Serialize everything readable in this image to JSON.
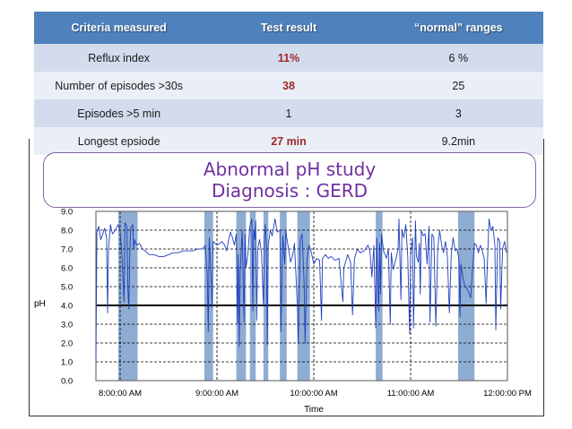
{
  "table": {
    "headers": [
      "Criteria measured",
      "Test result",
      "“normal” ranges"
    ],
    "rows": [
      {
        "criterion": "Reflux index",
        "result": "11%",
        "normal": "6 %"
      },
      {
        "criterion": "Number of episodes >30s",
        "result": "38",
        "normal": "25"
      },
      {
        "criterion": "Episodes >5 min",
        "result": "1",
        "normal": "3"
      },
      {
        "criterion": "Longest epsiode",
        "result": "27 min",
        "normal": "9.2min"
      }
    ]
  },
  "diagnosis": {
    "line1": "Abnormal pH study",
    "line2": "Diagnosis : GERD"
  },
  "colors": {
    "header_bg": "#4f81bd",
    "abnormal": "#a0282a",
    "diagnosis_text": "#7030a0",
    "trace": "#1f3fbf",
    "reflux_band": "#8fadd2"
  },
  "chart_data": {
    "type": "line",
    "title": "",
    "xlabel": "Time",
    "ylabel": "pH",
    "x_ticks": [
      "8:00:00 AM",
      "9:00:00 AM",
      "10:00:00 AM",
      "11:00:00 AM",
      "12:00:00 PM"
    ],
    "y_ticks": [
      "0.0",
      "1.0",
      "2.0",
      "3.0",
      "4.0",
      "5.0",
      "6.0",
      "7.0",
      "8.0",
      "9.0"
    ],
    "xlim_hours": [
      7.75,
      12.0
    ],
    "ylim": [
      0,
      9
    ],
    "threshold_ph": 4.0,
    "reflux_periods_hours": [
      [
        7.98,
        8.18
      ],
      [
        8.87,
        8.96
      ],
      [
        9.2,
        9.3
      ],
      [
        9.34,
        9.4
      ],
      [
        9.48,
        9.53
      ],
      [
        9.65,
        9.72
      ],
      [
        9.83,
        9.96
      ],
      [
        10.64,
        10.71
      ],
      [
        11.49,
        11.66
      ]
    ],
    "ph_trace": [
      [
        7.75,
        1.0
      ],
      [
        7.76,
        7.9
      ],
      [
        7.78,
        8.2
      ],
      [
        7.8,
        7.5
      ],
      [
        7.82,
        7.8
      ],
      [
        7.84,
        8.1
      ],
      [
        7.86,
        7.6
      ],
      [
        7.87,
        3.6
      ],
      [
        7.88,
        7.0
      ],
      [
        7.9,
        8.3
      ],
      [
        7.92,
        7.8
      ],
      [
        7.95,
        8.0
      ],
      [
        7.98,
        8.3
      ],
      [
        8.0,
        8.0
      ],
      [
        8.02,
        6.5
      ],
      [
        8.04,
        4.2
      ],
      [
        8.05,
        8.4
      ],
      [
        8.07,
        8.2
      ],
      [
        8.08,
        5.0
      ],
      [
        8.09,
        3.8
      ],
      [
        8.1,
        6.8
      ],
      [
        8.11,
        8.1
      ],
      [
        8.13,
        8.3
      ],
      [
        8.14,
        7.0
      ],
      [
        8.15,
        7.5
      ],
      [
        8.17,
        7.2
      ],
      [
        8.2,
        7.3
      ],
      [
        8.23,
        7.0
      ],
      [
        8.26,
        6.9
      ],
      [
        8.3,
        6.7
      ],
      [
        8.35,
        6.7
      ],
      [
        8.4,
        6.6
      ],
      [
        8.45,
        6.6
      ],
      [
        8.5,
        6.7
      ],
      [
        8.55,
        6.8
      ],
      [
        8.6,
        6.8
      ],
      [
        8.65,
        6.9
      ],
      [
        8.7,
        6.9
      ],
      [
        8.75,
        6.9
      ],
      [
        8.8,
        7.0
      ],
      [
        8.85,
        7.0
      ],
      [
        8.88,
        7.2
      ],
      [
        8.9,
        5.6
      ],
      [
        8.91,
        2.6
      ],
      [
        8.92,
        7.6
      ],
      [
        8.94,
        5.5
      ],
      [
        8.95,
        3.9
      ],
      [
        8.96,
        7.4
      ],
      [
        8.98,
        7.3
      ],
      [
        9.0,
        7.2
      ],
      [
        9.03,
        7.3
      ],
      [
        9.05,
        7.4
      ],
      [
        9.08,
        7.2
      ],
      [
        9.1,
        6.9
      ],
      [
        9.12,
        7.5
      ],
      [
        9.14,
        7.9
      ],
      [
        9.16,
        7.6
      ],
      [
        9.18,
        7.2
      ],
      [
        9.2,
        7.8
      ],
      [
        9.21,
        3.0
      ],
      [
        9.22,
        6.7
      ],
      [
        9.23,
        1.8
      ],
      [
        9.24,
        5.8
      ],
      [
        9.26,
        8.0
      ],
      [
        9.28,
        3.1
      ],
      [
        9.29,
        7.8
      ],
      [
        9.3,
        6.0
      ],
      [
        9.32,
        6.8
      ],
      [
        9.34,
        8.2
      ],
      [
        9.36,
        8.6
      ],
      [
        9.37,
        3.7
      ],
      [
        9.38,
        8.0
      ],
      [
        9.39,
        7.5
      ],
      [
        9.4,
        8.5
      ],
      [
        9.41,
        3.2
      ],
      [
        9.42,
        7.0
      ],
      [
        9.44,
        7.5
      ],
      [
        9.46,
        6.8
      ],
      [
        9.48,
        4.0
      ],
      [
        9.49,
        7.6
      ],
      [
        9.5,
        8.3
      ],
      [
        9.51,
        7.1
      ],
      [
        9.52,
        1.9
      ],
      [
        9.53,
        7.2
      ],
      [
        9.55,
        8.0
      ],
      [
        9.57,
        7.7
      ],
      [
        9.6,
        8.6
      ],
      [
        9.62,
        7.9
      ],
      [
        9.65,
        8.0
      ],
      [
        9.66,
        2.6
      ],
      [
        9.68,
        7.7
      ],
      [
        9.7,
        6.2
      ],
      [
        9.71,
        8.0
      ],
      [
        9.72,
        7.6
      ],
      [
        9.74,
        7.0
      ],
      [
        9.76,
        6.3
      ],
      [
        9.78,
        6.6
      ],
      [
        9.8,
        7.3
      ],
      [
        9.83,
        4.1
      ],
      [
        9.84,
        2.0
      ],
      [
        9.86,
        7.5
      ],
      [
        9.88,
        7.8
      ],
      [
        9.9,
        5.2
      ],
      [
        9.91,
        2.0
      ],
      [
        9.93,
        6.4
      ],
      [
        9.95,
        7.2
      ],
      [
        9.97,
        6.9
      ],
      [
        10.0,
        6.2
      ],
      [
        10.03,
        6.5
      ],
      [
        10.06,
        6.4
      ],
      [
        10.08,
        3.2
      ],
      [
        10.09,
        6.5
      ],
      [
        10.12,
        6.7
      ],
      [
        10.15,
        6.5
      ],
      [
        10.18,
        6.6
      ],
      [
        10.22,
        6.4
      ],
      [
        10.26,
        6.5
      ],
      [
        10.3,
        4.2
      ],
      [
        10.31,
        6.0
      ],
      [
        10.35,
        6.7
      ],
      [
        10.38,
        6.3
      ],
      [
        10.4,
        3.5
      ],
      [
        10.42,
        6.5
      ],
      [
        10.45,
        7.0
      ],
      [
        10.48,
        6.8
      ],
      [
        10.52,
        6.9
      ],
      [
        10.56,
        7.2
      ],
      [
        10.58,
        6.9
      ],
      [
        10.6,
        5.5
      ],
      [
        10.62,
        7.2
      ],
      [
        10.64,
        2.8
      ],
      [
        10.65,
        7.6
      ],
      [
        10.66,
        5.2
      ],
      [
        10.67,
        3.7
      ],
      [
        10.68,
        7.3
      ],
      [
        10.69,
        4.6
      ],
      [
        10.7,
        7.8
      ],
      [
        10.72,
        6.9
      ],
      [
        10.75,
        6.5
      ],
      [
        10.77,
        7.0
      ],
      [
        10.79,
        3.0
      ],
      [
        10.8,
        6.8
      ],
      [
        10.82,
        5.9
      ],
      [
        10.85,
        6.5
      ],
      [
        10.87,
        7.0
      ],
      [
        10.88,
        8.6
      ],
      [
        10.9,
        4.3
      ],
      [
        10.91,
        8.0
      ],
      [
        10.93,
        7.6
      ],
      [
        10.95,
        8.3
      ],
      [
        10.97,
        6.6
      ],
      [
        10.99,
        2.5
      ],
      [
        11.0,
        6.6
      ],
      [
        11.02,
        7.6
      ],
      [
        11.03,
        2.8
      ],
      [
        11.05,
        8.5
      ],
      [
        11.06,
        6.6
      ],
      [
        11.08,
        6.3
      ],
      [
        11.09,
        7.3
      ],
      [
        11.1,
        4.6
      ],
      [
        11.11,
        8.0
      ],
      [
        11.13,
        7.7
      ],
      [
        11.15,
        7.8
      ],
      [
        11.17,
        6.2
      ],
      [
        11.19,
        8.2
      ],
      [
        11.2,
        3.1
      ],
      [
        11.22,
        7.8
      ],
      [
        11.24,
        7.6
      ],
      [
        11.26,
        2.9
      ],
      [
        11.28,
        7.0
      ],
      [
        11.3,
        8.0
      ],
      [
        11.32,
        7.2
      ],
      [
        11.34,
        6.8
      ],
      [
        11.36,
        7.4
      ],
      [
        11.38,
        6.6
      ],
      [
        11.4,
        3.6
      ],
      [
        11.42,
        6.8
      ],
      [
        11.44,
        7.6
      ],
      [
        11.46,
        6.9
      ],
      [
        11.48,
        7.0
      ],
      [
        11.5,
        6.4
      ],
      [
        11.51,
        3.4
      ],
      [
        11.52,
        6.2
      ],
      [
        11.54,
        5.5
      ],
      [
        11.56,
        5.0
      ],
      [
        11.58,
        4.9
      ],
      [
        11.6,
        4.7
      ],
      [
        11.62,
        4.4
      ],
      [
        11.64,
        6.0
      ],
      [
        11.66,
        7.3
      ],
      [
        11.68,
        7.2
      ],
      [
        11.7,
        6.8
      ],
      [
        11.72,
        7.2
      ],
      [
        11.74,
        6.9
      ],
      [
        11.76,
        6.5
      ],
      [
        11.78,
        4.1
      ],
      [
        11.79,
        5.8
      ],
      [
        11.81,
        8.6
      ],
      [
        11.83,
        8.0
      ],
      [
        11.85,
        8.2
      ],
      [
        11.87,
        7.2
      ],
      [
        11.88,
        2.7
      ],
      [
        11.9,
        7.6
      ],
      [
        11.92,
        7.4
      ],
      [
        11.93,
        3.8
      ],
      [
        11.95,
        7.0
      ],
      [
        11.97,
        7.4
      ],
      [
        11.99,
        6.8
      ]
    ]
  }
}
